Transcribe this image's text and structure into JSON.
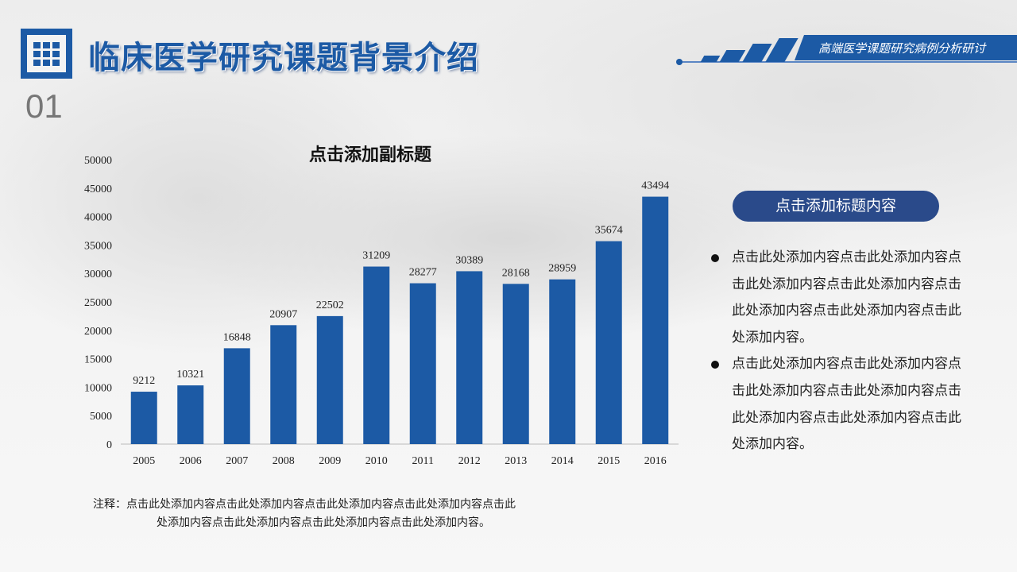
{
  "header": {
    "title": "临床医学研究课题背景介绍",
    "section_number": "01",
    "banner_text": "高端医学课题研究病例分析研讨"
  },
  "chart_data": {
    "type": "bar",
    "title": "点击添加副标题",
    "categories": [
      "2005",
      "2006",
      "2007",
      "2008",
      "2009",
      "2010",
      "2011",
      "2012",
      "2013",
      "2014",
      "2015",
      "2016"
    ],
    "values": [
      9212,
      10321,
      16848,
      20907,
      22502,
      31209,
      28277,
      30389,
      28168,
      28959,
      35674,
      43494
    ],
    "ylim": [
      0,
      50000
    ],
    "yticks": [
      0,
      5000,
      10000,
      15000,
      20000,
      25000,
      30000,
      35000,
      40000,
      45000,
      50000
    ],
    "xlabel": "",
    "ylabel": "",
    "grid": false,
    "bar_color": "#1c5aa5"
  },
  "note": {
    "label": "注释：",
    "line1": "点击此处添加内容点击此处添加内容点击此处添加内容点击此处添加内容点击此",
    "line2": "处添加内容点击此处添加内容点击此处添加内容点击此处添加内容。"
  },
  "sidebar": {
    "heading": "点击添加标题内容",
    "bullets": [
      "点击此处添加内容点击此处添加内容点击此处添加内容点击此处添加内容点击此处添加内容点击此处添加内容点击此处添加内容。",
      "点击此处添加内容点击此处添加内容点击此处添加内容点击此处添加内容点击此处添加内容点击此处添加内容点击此处添加内容。"
    ]
  }
}
